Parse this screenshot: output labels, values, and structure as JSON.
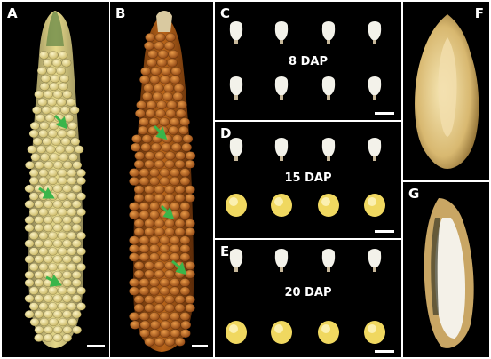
{
  "figure": {
    "panels": [
      {
        "id": "A",
        "label": "A"
      },
      {
        "id": "B",
        "label": "B"
      },
      {
        "id": "C",
        "label": "C",
        "stage": "8 DAP"
      },
      {
        "id": "D",
        "label": "D",
        "stage": "15 DAP"
      },
      {
        "id": "E",
        "label": "E",
        "stage": "20 DAP"
      },
      {
        "id": "F",
        "label": "F"
      },
      {
        "id": "G",
        "label": "G"
      }
    ],
    "colors": {
      "background": "#000000",
      "cob_a_kernel": "#e6d98a",
      "cob_b_kernel": "#b8641a",
      "kernel_white": "#f3f2ea",
      "kernel_yellow": "#f0d860",
      "arrow": "#3ab54a",
      "scale_bar": "#ffffff"
    }
  }
}
